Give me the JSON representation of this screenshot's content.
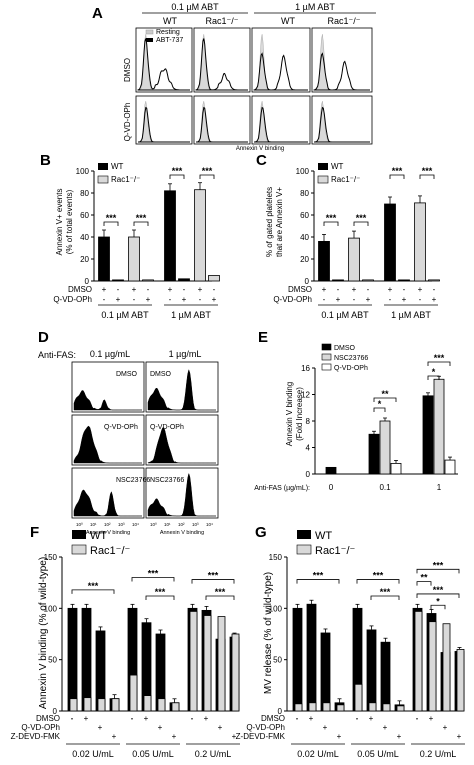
{
  "colors": {
    "black": "#000000",
    "grey": "#bdbdbd",
    "lightgrey": "#d9d9d9",
    "white": "#ffffff"
  },
  "panel_A": {
    "letter": "A",
    "conc_labels": [
      "0.1 µM ABT",
      "1 µM ABT"
    ],
    "genotypes": [
      "WT",
      "Rac1⁻/⁻",
      "WT",
      "Rac1⁻/⁻"
    ],
    "row_labels": [
      "DMSO",
      "Q-VD-OPh"
    ],
    "legend": [
      "Resting",
      "ABT-737"
    ],
    "xlabel": "Annexin V binding"
  },
  "panel_B": {
    "letter": "B",
    "ylabel": "Annexin V+ events\n(% of total events)",
    "legend": [
      "WT",
      "Rac1⁻/⁻"
    ],
    "yticks": [
      "0",
      "20",
      "40",
      "60",
      "80",
      "100"
    ],
    "row_labels": [
      "DMSO",
      "Q-VD-OPh"
    ],
    "row_signs": [
      [
        "+",
        "-",
        "+",
        "-",
        "+",
        "-",
        "+",
        "-"
      ],
      [
        "-",
        "+",
        "-",
        "+",
        "-",
        "+",
        "-",
        "+"
      ]
    ],
    "groups": [
      "0.1 µM ABT",
      "1 µM ABT"
    ],
    "sig": [
      "***",
      "***",
      "***",
      "***"
    ]
  },
  "panel_C": {
    "letter": "C",
    "ylabel": "% of gated platelets\nthat are Annexin V+",
    "legend": [
      "WT",
      "Rac1⁻/⁻"
    ],
    "yticks": [
      "0",
      "20",
      "40",
      "60",
      "80",
      "100"
    ],
    "row_labels": [
      "DMSO",
      "Q-VD-OPh"
    ],
    "row_signs": [
      [
        "+",
        "-",
        "+",
        "-",
        "+",
        "-",
        "+",
        "-"
      ],
      [
        "-",
        "+",
        "-",
        "+",
        "-",
        "+",
        "-",
        "+"
      ]
    ],
    "groups": [
      "0.1 µM ABT",
      "1 µM ABT"
    ],
    "sig": [
      "***",
      "***",
      "***",
      "***"
    ]
  },
  "panel_D": {
    "letter": "D",
    "anti_fas": "Anti-FAS:",
    "conc_labels": [
      "0.1 µg/mL",
      "1 µg/mL"
    ],
    "treatments": [
      "DMSO",
      "Q-VD-OPh",
      "NSC23766"
    ],
    "xlabel": "Annexin V binding",
    "tick_labels": [
      "10⁰",
      "10¹",
      "10²",
      "10³",
      "10⁴"
    ]
  },
  "panel_E": {
    "letter": "E",
    "ylabel": "Annexin V binding\n(Fold Increase)",
    "legend": [
      "DMSO",
      "NSC23766",
      "Q-VD-OPh"
    ],
    "yticks": [
      "0",
      "4",
      "8",
      "12",
      "16"
    ],
    "xprefix": "Anti-FAS (µg/mL):",
    "xcats": [
      "0",
      "0.1",
      "1"
    ],
    "sig": [
      "*",
      "**",
      "*",
      "***"
    ]
  },
  "panel_F": {
    "letter": "F",
    "ylabel": "Annexin V binding (% of wild-type)",
    "legend": [
      "WT",
      "Rac1⁻/⁻"
    ],
    "yticks": [
      "0",
      "50",
      "100",
      "150"
    ],
    "row_labels": [
      "DMSO",
      "Q-VD-OPh",
      "Z-DEVD-FMK"
    ],
    "row_signs": [
      [
        "+",
        "",
        ""
      ],
      [
        "",
        "+",
        ""
      ],
      [
        "",
        "",
        "+"
      ]
    ],
    "groups": [
      "0.02 U/mL",
      "0.05 U/mL",
      "0.2 U/mL"
    ],
    "sig": [
      "***",
      "***",
      "***",
      "***",
      "***"
    ]
  },
  "panel_G": {
    "letter": "G",
    "ylabel": "MV release (% of wild-type)",
    "legend": [
      "WT",
      "Rac1⁻/⁻"
    ],
    "yticks": [
      "0",
      "50",
      "100",
      "150"
    ],
    "row_labels": [
      "DMSO",
      "Q-VD-OPh",
      "Z-DEVD-FMK"
    ],
    "row_signs": [
      [
        "+",
        "",
        ""
      ],
      [
        "",
        "+",
        ""
      ],
      [
        "",
        "",
        "+"
      ]
    ],
    "groups": [
      "0.02 U/mL",
      "0.05 U/mL",
      "0.2 U/mL"
    ],
    "sig": [
      "***",
      "***",
      "***",
      "***",
      "**",
      "***",
      "*"
    ]
  },
  "chart_data": [
    {
      "panel": "B",
      "type": "bar",
      "ylim": [
        0,
        100
      ],
      "categories": [
        "0.1 µM ABT DMSO",
        "0.1 µM ABT Q-VD-OPh",
        "1 µM ABT DMSO",
        "1 µM ABT Q-VD-OPh"
      ],
      "series": [
        {
          "name": "WT",
          "values": [
            40,
            1,
            82,
            2
          ]
        },
        {
          "name": "Rac1⁻/⁻",
          "values": [
            40,
            1,
            83,
            5
          ]
        }
      ]
    },
    {
      "panel": "C",
      "type": "bar",
      "ylim": [
        0,
        100
      ],
      "categories": [
        "0.1 µM ABT DMSO",
        "0.1 µM ABT Q-VD-OPh",
        "1 µM ABT DMSO",
        "1 µM ABT Q-VD-OPh"
      ],
      "series": [
        {
          "name": "WT",
          "values": [
            36,
            1,
            70,
            1
          ]
        },
        {
          "name": "Rac1⁻/⁻",
          "values": [
            39,
            1,
            71,
            1
          ]
        }
      ]
    },
    {
      "panel": "E",
      "type": "bar",
      "ylim": [
        0,
        16
      ],
      "categories": [
        "0",
        "0.1",
        "1"
      ],
      "series": [
        {
          "name": "DMSO",
          "values": [
            1,
            6,
            11.8
          ]
        },
        {
          "name": "NSC23766",
          "values": [
            null,
            8,
            14.3
          ]
        },
        {
          "name": "Q-VD-OPh",
          "values": [
            null,
            1.6,
            2.1
          ]
        }
      ]
    },
    {
      "panel": "F",
      "type": "bar",
      "ylim": [
        0,
        150
      ],
      "categories": [
        "0.02 U/mL",
        "",
        "",
        "",
        "0.05 U/mL",
        "",
        "",
        "",
        "0.2 U/mL",
        "",
        "",
        ""
      ],
      "series": [
        {
          "name": "WT",
          "values": [
            100,
            100,
            78,
            12,
            100,
            86,
            75,
            8,
            100,
            98,
            70,
            72
          ]
        },
        {
          "name": "Rac1⁻/⁻",
          "values": [
            12,
            13,
            12,
            12,
            35,
            15,
            12,
            8,
            97,
            93,
            92,
            75
          ]
        }
      ]
    },
    {
      "panel": "G",
      "type": "bar",
      "ylim": [
        0,
        150
      ],
      "categories": [
        "0.02 U/mL",
        "",
        "",
        "",
        "0.05 U/mL",
        "",
        "",
        "",
        "0.2 U/mL",
        "",
        "",
        ""
      ],
      "series": [
        {
          "name": "WT",
          "values": [
            100,
            104,
            76,
            8,
            100,
            79,
            67,
            6,
            100,
            95,
            57,
            58
          ]
        },
        {
          "name": "Rac1⁻/⁻",
          "values": [
            7,
            8,
            8,
            6,
            26,
            8,
            7,
            5,
            97,
            87,
            85,
            60
          ]
        }
      ]
    }
  ]
}
